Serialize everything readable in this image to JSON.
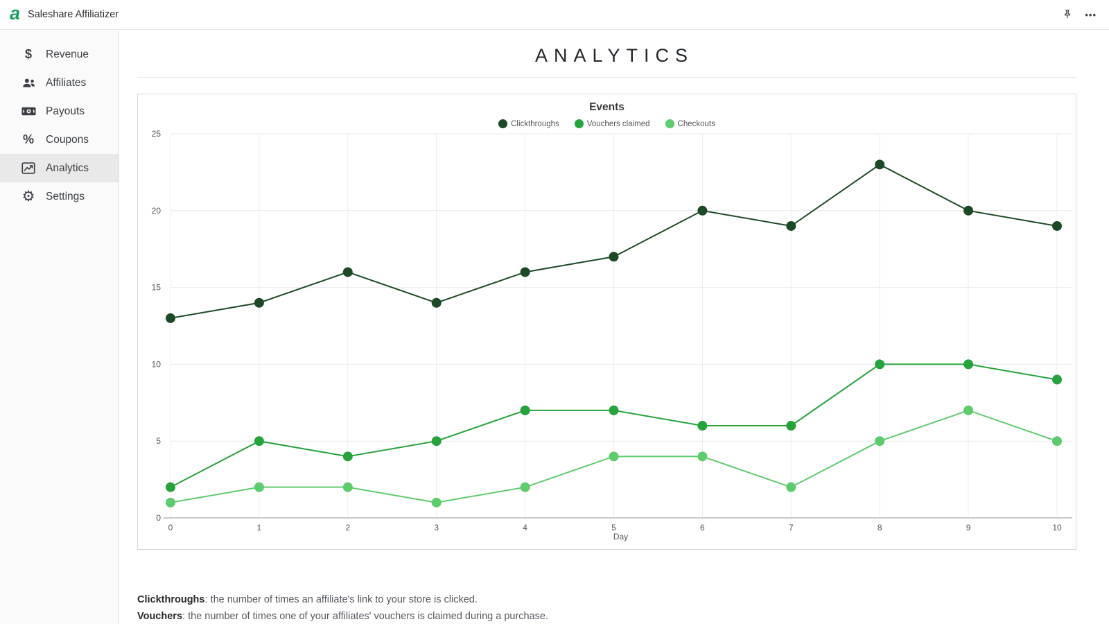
{
  "app": {
    "logo_letter": "a",
    "title": "Saleshare Affiliatizer"
  },
  "topbar": {
    "more_glyph": "•••"
  },
  "sidebar": {
    "items": [
      {
        "label": "Revenue",
        "icon": "dollar-icon",
        "active": false
      },
      {
        "label": "Affiliates",
        "icon": "users-icon",
        "active": false
      },
      {
        "label": "Payouts",
        "icon": "money-bill-icon",
        "active": false
      },
      {
        "label": "Coupons",
        "icon": "percent-icon",
        "active": false
      },
      {
        "label": "Analytics",
        "icon": "chart-line-icon",
        "active": true
      },
      {
        "label": "Settings",
        "icon": "gear-icon",
        "active": false
      }
    ]
  },
  "icons": {
    "dollar": "$",
    "percent": "%",
    "gear": "⚙"
  },
  "page": {
    "title": "ANALYTICS"
  },
  "chart_data": {
    "type": "line",
    "title": "Events",
    "x": [
      0,
      1,
      2,
      3,
      4,
      5,
      6,
      7,
      8,
      9,
      10
    ],
    "xlabel": "Day",
    "ylim": [
      0,
      25
    ],
    "yticks": [
      0,
      5,
      10,
      15,
      20,
      25
    ],
    "grid": true,
    "legend_position": "top",
    "series": [
      {
        "name": "Clickthroughs",
        "color": "#1d4a26",
        "values": [
          13,
          14,
          16,
          14,
          16,
          17,
          20,
          19,
          23,
          20,
          19
        ]
      },
      {
        "name": "Vouchers claimed",
        "color": "#26a33c",
        "values": [
          2,
          5,
          4,
          5,
          7,
          7,
          6,
          6,
          10,
          10,
          9
        ]
      },
      {
        "name": "Checkouts",
        "color": "#5ecb6d",
        "values": [
          1,
          2,
          2,
          1,
          2,
          4,
          4,
          2,
          5,
          7,
          5
        ]
      }
    ]
  },
  "footer": {
    "lines": [
      {
        "term": "Clickthroughs",
        "definition": ": the number of times an affiliate's link to your store is clicked."
      },
      {
        "term": "Vouchers",
        "definition": ": the number of times one of your affiliates' vouchers is claimed during a purchase."
      }
    ]
  }
}
